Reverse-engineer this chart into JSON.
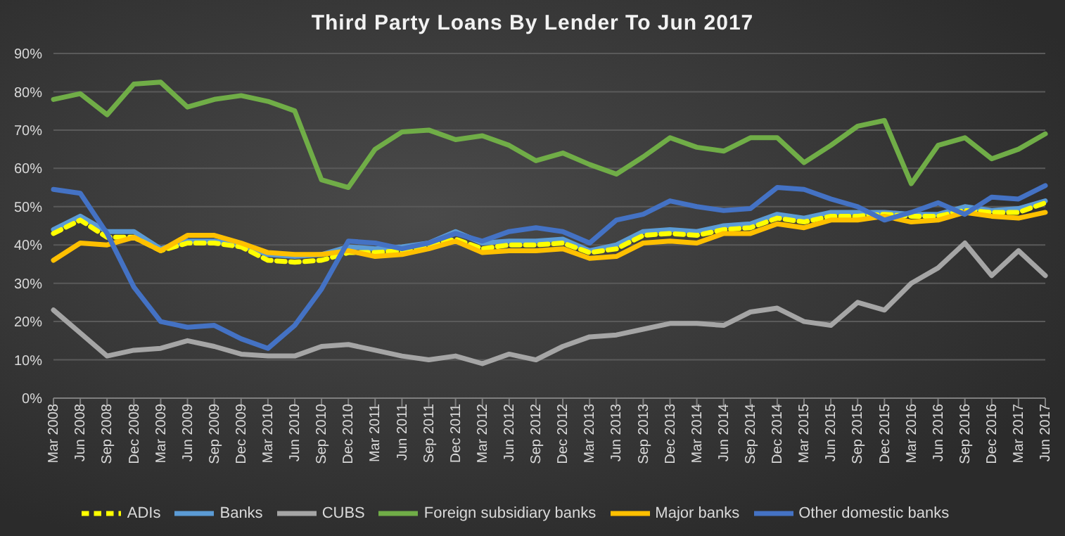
{
  "chart_data": {
    "type": "line",
    "title": "Third Party Loans By Lender To Jun 2017",
    "categories": [
      "Mar 2008",
      "Jun 2008",
      "Sep 2008",
      "Dec 2008",
      "Mar 2009",
      "Jun 2009",
      "Sep 2009",
      "Dec 2009",
      "Mar 2010",
      "Jun 2010",
      "Sep 2010",
      "Dec 2010",
      "Mar 2011",
      "Jun 2011",
      "Sep 2011",
      "Dec 2011",
      "Mar 2012",
      "Jun 2012",
      "Sep 2012",
      "Dec 2012",
      "Mar 2013",
      "Jun 2013",
      "Sep 2013",
      "Dec 2013",
      "Mar 2014",
      "Jun 2014",
      "Sep 2014",
      "Dec 2014",
      "Mar 2015",
      "Jun 2015",
      "Sep 2015",
      "Dec 2015",
      "Mar 2016",
      "Jun 2016",
      "Sep 2016",
      "Dec 2016",
      "Mar 2017",
      "Jun 2017"
    ],
    "series": [
      {
        "name": "Banks",
        "color": "#5b9bd5",
        "values": [
          44,
          47.5,
          43.5,
          43.5,
          39,
          41,
          41,
          40,
          37.5,
          37,
          37.5,
          39.5,
          39,
          39.5,
          40.5,
          43.5,
          40.5,
          41,
          41,
          41.5,
          38.5,
          40,
          43.5,
          44,
          43.5,
          45,
          45.5,
          48,
          47,
          48.5,
          48.5,
          48.5,
          48,
          48,
          50,
          49,
          49.5,
          51.5
        ]
      },
      {
        "name": "ADIs",
        "color": "#ffff00",
        "line_style": "dashed",
        "values": [
          43,
          46.5,
          42,
          42,
          38.5,
          40.5,
          40.5,
          39.5,
          36,
          35.5,
          36,
          38,
          38,
          38.5,
          40,
          41.5,
          39,
          40,
          40,
          40.5,
          38,
          39,
          42.5,
          43,
          42.5,
          44,
          44.5,
          47,
          46,
          47.5,
          47.5,
          48,
          47.5,
          47.5,
          49,
          48.5,
          48.5,
          51
        ]
      },
      {
        "name": "CUBS",
        "color": "#a5a5a5",
        "values": [
          23,
          17,
          11,
          12.5,
          13,
          15,
          13.5,
          11.5,
          11,
          11,
          13.5,
          14,
          12.5,
          11,
          10,
          11,
          9,
          11.5,
          10,
          13.5,
          16,
          16.5,
          18,
          19.5,
          19.5,
          19,
          22.5,
          23.5,
          20,
          19,
          25,
          23,
          30,
          34,
          40.5,
          32,
          38.5,
          32
        ]
      },
      {
        "name": "Major banks",
        "color": "#ffc000",
        "values": [
          36,
          40.5,
          40,
          42,
          38.5,
          42.5,
          42.5,
          40.5,
          38,
          37.5,
          37.5,
          38.5,
          37,
          37.5,
          39,
          41,
          38,
          38.5,
          38.5,
          39,
          36.5,
          37,
          40.5,
          41,
          40.5,
          43,
          43,
          45.5,
          44.5,
          46.5,
          46.5,
          47.5,
          46,
          46.5,
          48.5,
          47.5,
          47,
          48.5
        ]
      },
      {
        "name": "Other domestic banks",
        "color": "#4472c4",
        "values": [
          54.5,
          53.5,
          43,
          29,
          20,
          18.5,
          19,
          15.5,
          13,
          19,
          28.5,
          41,
          40.5,
          39,
          40.5,
          43,
          41,
          43.5,
          44.5,
          43.5,
          40.5,
          46.5,
          48,
          51.5,
          50,
          49,
          49.5,
          55,
          54.5,
          52,
          50,
          46.5,
          48.5,
          51,
          48,
          52.5,
          52,
          55.5
        ]
      },
      {
        "name": "Foreign subsidiary banks",
        "color": "#70ad47",
        "values": [
          78,
          79.5,
          74,
          82,
          82.5,
          76,
          78,
          79,
          77.5,
          75,
          57,
          55,
          65,
          69.5,
          70,
          67.5,
          68.5,
          66,
          62,
          64,
          61,
          58.5,
          63,
          68,
          65.5,
          64.5,
          68,
          68,
          61.5,
          66,
          71,
          72.5,
          56,
          66,
          68,
          62.5,
          65,
          69
        ]
      }
    ],
    "ylim": [
      0,
      90
    ],
    "yticks": [
      {
        "value": 0,
        "label": "0%"
      },
      {
        "value": 10,
        "label": "10%"
      },
      {
        "value": 20,
        "label": "20%"
      },
      {
        "value": 30,
        "label": "30%"
      },
      {
        "value": 40,
        "label": "40%"
      },
      {
        "value": 50,
        "label": "50%"
      },
      {
        "value": 60,
        "label": "60%"
      },
      {
        "value": 70,
        "label": "70%"
      },
      {
        "value": 80,
        "label": "80%"
      },
      {
        "value": 90,
        "label": "90%"
      }
    ],
    "grid": "y",
    "legend": "bottom",
    "marker": "none",
    "line_style": "solid"
  }
}
